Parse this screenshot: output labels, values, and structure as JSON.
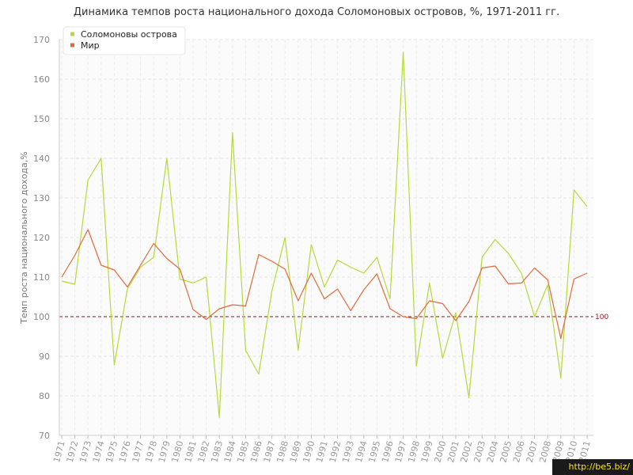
{
  "title": "Динамика темпов роста национального дохода Соломоновых островов, %, 1971-2011 гг.",
  "watermark": "http://be5.biz/",
  "chart_data": {
    "type": "line",
    "title": "Динамика темпов роста национального дохода Соломоновых островов, %, 1971-2011 гг.",
    "ylabel": "Темп роста национального дохода,%",
    "xlabel": "",
    "ylim": [
      70,
      170
    ],
    "yticks": [
      70,
      80,
      90,
      100,
      110,
      120,
      130,
      140,
      150,
      160,
      170
    ],
    "grid": true,
    "legend_position": "top-left",
    "reference_line": {
      "value": 100,
      "label": "100",
      "color": "#8b1a1a"
    },
    "x": [
      "1971",
      "1972",
      "1973",
      "1974",
      "1975",
      "1976",
      "1977",
      "1978",
      "1979",
      "1980",
      "1981",
      "1982",
      "1983",
      "1984",
      "1985",
      "1986",
      "1987",
      "1988",
      "1989",
      "1990",
      "1991",
      "1992",
      "1993",
      "1994",
      "1995",
      "1996",
      "1997",
      "1998",
      "1999",
      "2000",
      "2001",
      "2002",
      "2003",
      "2004",
      "2005",
      "2006",
      "2007",
      "2008",
      "2009",
      "2010",
      "2011"
    ],
    "series": [
      {
        "name": "Соломоновы острова",
        "color": "#b5d93a",
        "values": [
          109.0,
          108.2,
          134.5,
          140.0,
          87.8,
          107.0,
          112.5,
          115.0,
          140.0,
          109.5,
          108.5,
          110.0,
          74.5,
          146.5,
          91.5,
          85.5,
          106.5,
          120.0,
          91.5,
          118.2,
          107.5,
          114.3,
          112.5,
          111.0,
          115.0,
          104.5,
          166.8,
          87.5,
          108.5,
          89.5,
          101.0,
          79.5,
          115.0,
          119.5,
          116.0,
          111.0,
          100.0,
          108.0,
          84.5,
          132.0,
          127.8
        ]
      },
      {
        "name": "Мир",
        "color": "#e06a3b",
        "values": [
          110.0,
          115.5,
          122.0,
          113.0,
          111.8,
          107.5,
          113.0,
          118.5,
          114.7,
          112.0,
          101.8,
          99.3,
          102.0,
          103.0,
          102.7,
          115.7,
          114.0,
          112.0,
          104.0,
          111.0,
          104.5,
          107.0,
          101.5,
          106.8,
          110.8,
          102.0,
          100.0,
          99.5,
          104.0,
          103.3,
          99.0,
          103.8,
          112.3,
          112.8,
          108.3,
          108.5,
          112.3,
          109.3,
          94.5,
          109.5,
          111.0
        ]
      }
    ]
  }
}
